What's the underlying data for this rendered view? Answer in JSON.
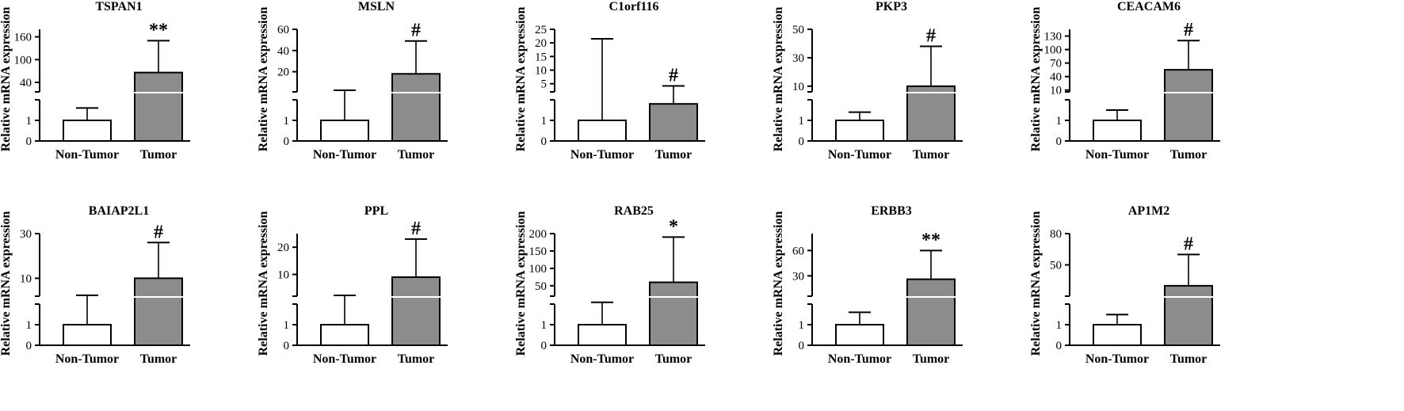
{
  "figure": {
    "background": "#ffffff",
    "bar_tumor_color": "#8c8c8c",
    "bar_nontumor_color": "#ffffff"
  },
  "chart_data": [
    {
      "type": "bar",
      "title": "TSPAN1",
      "ylabel": "Relative mRNA expression",
      "categories": [
        "Non-Tumor",
        "Tumor"
      ],
      "values": [
        1,
        66
      ],
      "error_upper": [
        1.6,
        150
      ],
      "significance": "**",
      "upper_ylim": [
        15,
        180
      ],
      "upper_ticks": [
        40,
        100,
        160
      ],
      "lower_ylim": [
        0,
        2
      ],
      "lower_ticks": [
        0,
        1
      ]
    },
    {
      "type": "bar",
      "title": "MSLN",
      "ylabel": "Relative mRNA expression",
      "categories": [
        "Non-Tumor",
        "Tumor"
      ],
      "values": [
        1,
        18
      ],
      "error_upper": [
        2.5,
        49
      ],
      "significance": "#",
      "upper_ylim": [
        1,
        60
      ],
      "upper_ticks": [
        20,
        40,
        60
      ],
      "lower_ylim": [
        0,
        2
      ],
      "lower_ticks": [
        0,
        1
      ]
    },
    {
      "type": "bar",
      "title": "C1orf116",
      "ylabel": "Relative mRNA expression",
      "categories": [
        "Non-Tumor",
        "Tumor"
      ],
      "values": [
        1,
        1.8
      ],
      "error_upper": [
        21.5,
        4.2
      ],
      "significance": "#",
      "upper_ylim": [
        2,
        25
      ],
      "upper_ticks": [
        5,
        10,
        15,
        20,
        25
      ],
      "lower_ylim": [
        0,
        2
      ],
      "lower_ticks": [
        0,
        1
      ]
    },
    {
      "type": "bar",
      "title": "PKP3",
      "ylabel": "Relative mRNA expression",
      "categories": [
        "Non-Tumor",
        "Tumor"
      ],
      "values": [
        1,
        10
      ],
      "error_upper": [
        1.4,
        38
      ],
      "significance": "#",
      "upper_ylim": [
        6,
        50
      ],
      "upper_ticks": [
        10,
        30,
        50
      ],
      "lower_ylim": [
        0,
        2
      ],
      "lower_ticks": [
        0,
        1
      ]
    },
    {
      "type": "bar",
      "title": "CEACAM6",
      "ylabel": "Relative mRNA expression",
      "categories": [
        "Non-Tumor",
        "Tumor"
      ],
      "values": [
        1,
        55
      ],
      "error_upper": [
        1.5,
        120
      ],
      "significance": "#",
      "upper_ylim": [
        6,
        145
      ],
      "upper_ticks": [
        10,
        40,
        70,
        100,
        130
      ],
      "lower_ylim": [
        0,
        2
      ],
      "lower_ticks": [
        0,
        1
      ]
    },
    {
      "type": "bar",
      "title": "BAIAP2L1",
      "ylabel": "Relative mRNA expression",
      "categories": [
        "Non-Tumor",
        "Tumor"
      ],
      "values": [
        1,
        10
      ],
      "error_upper": [
        2.4,
        26
      ],
      "significance": "#",
      "upper_ylim": [
        2,
        30
      ],
      "upper_ticks": [
        10,
        30
      ],
      "lower_ylim": [
        0,
        2
      ],
      "lower_ticks": [
        0,
        1
      ]
    },
    {
      "type": "bar",
      "title": "PPL",
      "ylabel": "Relative mRNA expression",
      "categories": [
        "Non-Tumor",
        "Tumor"
      ],
      "values": [
        1,
        9
      ],
      "error_upper": [
        2.3,
        23
      ],
      "significance": "#",
      "upper_ylim": [
        2,
        25
      ],
      "upper_ticks": [
        10,
        20
      ],
      "lower_ylim": [
        0,
        2
      ],
      "lower_ticks": [
        0,
        1
      ]
    },
    {
      "type": "bar",
      "title": "RAB25",
      "ylabel": "Relative mRNA expression",
      "categories": [
        "Non-Tumor",
        "Tumor"
      ],
      "values": [
        1,
        60
      ],
      "error_upper": [
        2.4,
        190
      ],
      "significance": "*",
      "upper_ylim": [
        20,
        200
      ],
      "upper_ticks": [
        50,
        100,
        150,
        200
      ],
      "lower_ylim": [
        0,
        2
      ],
      "lower_ticks": [
        0,
        1
      ]
    },
    {
      "type": "bar",
      "title": "ERBB3",
      "ylabel": "Relative mRNA expression",
      "categories": [
        "Non-Tumor",
        "Tumor"
      ],
      "values": [
        1,
        26
      ],
      "error_upper": [
        1.6,
        60
      ],
      "significance": "**",
      "upper_ylim": [
        6,
        80
      ],
      "upper_ticks": [
        30,
        60
      ],
      "lower_ylim": [
        0,
        2
      ],
      "lower_ticks": [
        0,
        1
      ]
    },
    {
      "type": "bar",
      "title": "AP1M2",
      "ylabel": "Relative mRNA expression",
      "categories": [
        "Non-Tumor",
        "Tumor"
      ],
      "values": [
        1,
        30
      ],
      "error_upper": [
        2.3,
        60
      ],
      "significance": "#",
      "upper_ylim": [
        20,
        80
      ],
      "upper_ticks": [
        50,
        80
      ],
      "lower_ylim": [
        0,
        2
      ],
      "lower_ticks": [
        0,
        1
      ]
    }
  ]
}
